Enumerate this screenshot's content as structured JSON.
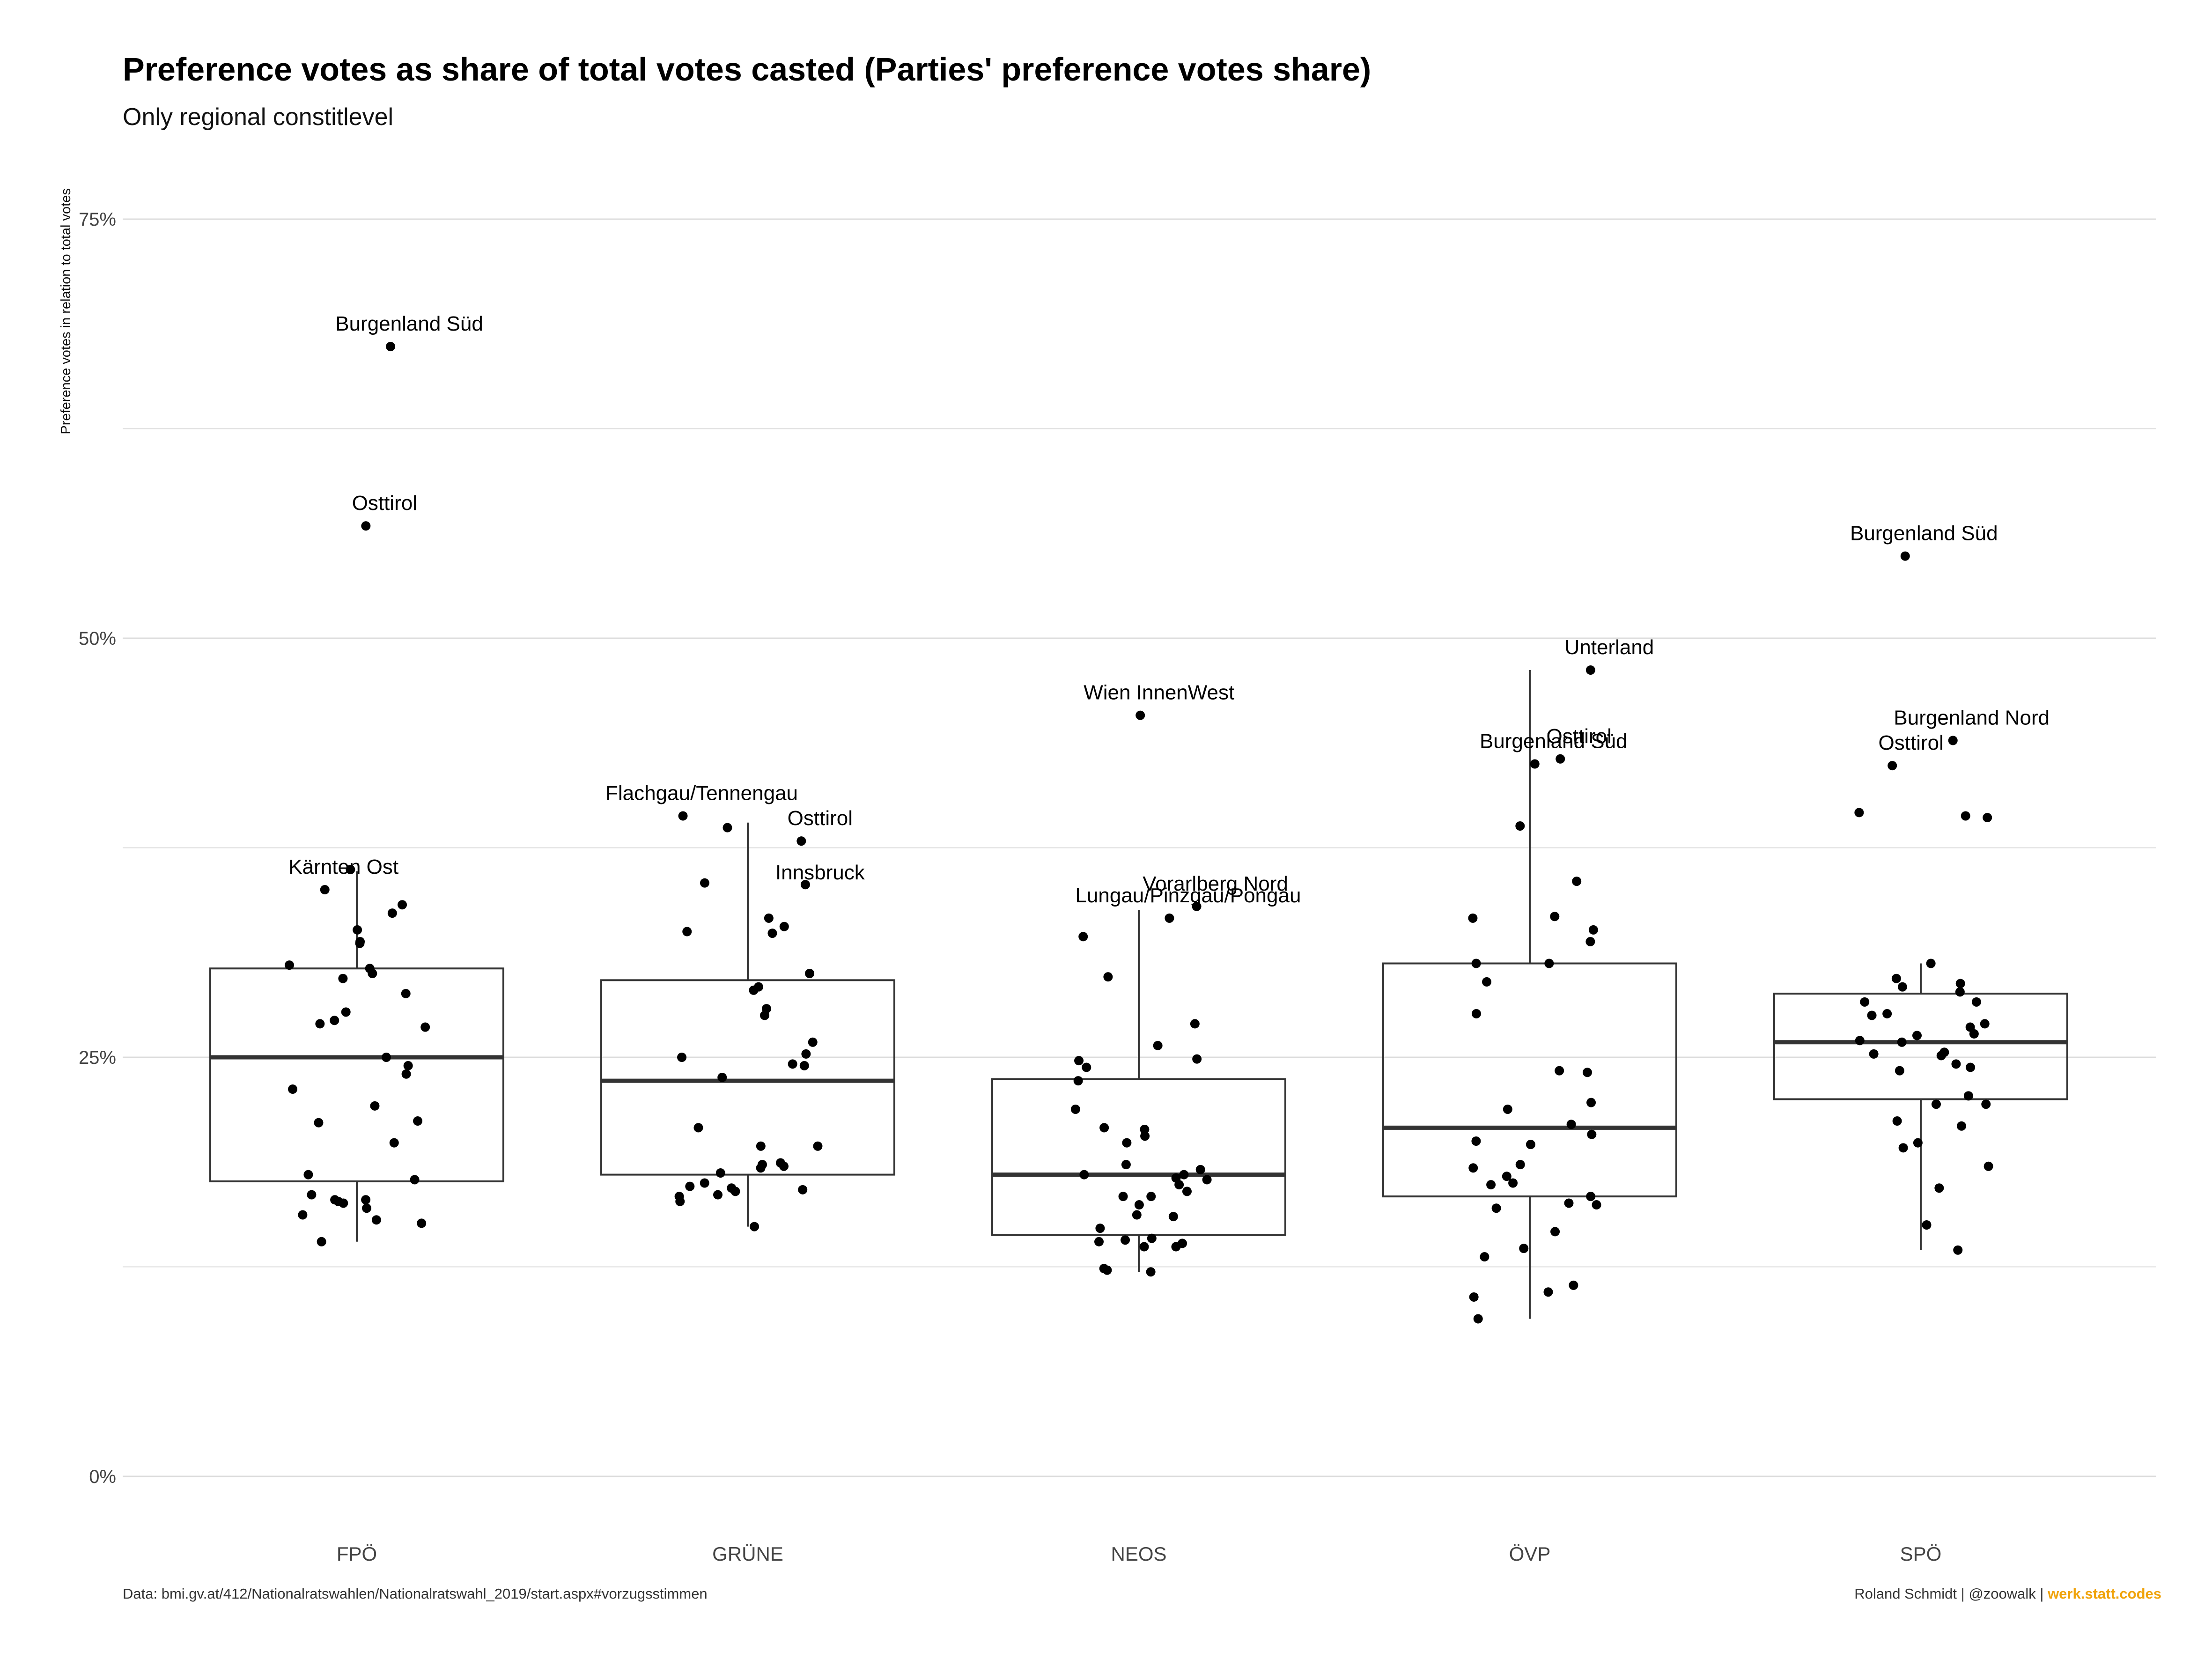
{
  "title": "Preference votes as share of total votes casted (Parties' preference votes share)",
  "subtitle": "Only regional constitlevel",
  "caption": {
    "source": "Data: bmi.gv.at/412/Nationalratswahlen/Nationalratswahl_2019/start.aspx#vorzugsstimmen",
    "author": "Roland Schmidt | @zoowalk | ",
    "brand": "werk.statt.codes"
  },
  "colors": {
    "box": "#333333",
    "median": "#333333",
    "point": "#000000",
    "grid": "#dcdcdc",
    "brand": "#f0a30a"
  },
  "chart_data": {
    "type": "box",
    "title": "Preference votes as share of total votes casted (Parties' preference votes share)",
    "subtitle": "Only regional constitlevel",
    "xlabel": "",
    "ylabel": "Preference votes in relation to total votes",
    "ylim": [
      -0.025,
      0.78
    ],
    "yticks": [
      0,
      0.25,
      0.5,
      0.75
    ],
    "ytick_labels": [
      "0%",
      "25%",
      "50%",
      "75%"
    ],
    "grid": true,
    "categories": [
      "FPÖ",
      "GRÜNE",
      "NEOS",
      "ÖVP",
      "SPÖ"
    ],
    "boxes": [
      {
        "category": "FPÖ",
        "min": 0.14,
        "q1": 0.176,
        "median": 0.25,
        "q3": 0.303,
        "max": 0.361
      },
      {
        "category": "GRÜNE",
        "min": 0.149,
        "q1": 0.18,
        "median": 0.236,
        "q3": 0.296,
        "max": 0.39
      },
      {
        "category": "NEOS",
        "min": 0.122,
        "q1": 0.144,
        "median": 0.18,
        "q3": 0.237,
        "max": 0.338
      },
      {
        "category": "ÖVP",
        "min": 0.094,
        "q1": 0.167,
        "median": 0.208,
        "q3": 0.306,
        "max": 0.481
      },
      {
        "category": "SPÖ",
        "min": 0.135,
        "q1": 0.225,
        "median": 0.259,
        "q3": 0.288,
        "max": 0.306
      }
    ],
    "points": [
      {
        "category": "FPÖ",
        "values": [
          0.674,
          0.567,
          0.362,
          0.35,
          0.341,
          0.336,
          0.326,
          0.319,
          0.318,
          0.305,
          0.303,
          0.3,
          0.297,
          0.288,
          0.272,
          0.277,
          0.27,
          0.268,
          0.25,
          0.245,
          0.24,
          0.231,
          0.221,
          0.212,
          0.211,
          0.199,
          0.18,
          0.177,
          0.168,
          0.165,
          0.165,
          0.164,
          0.163,
          0.16,
          0.156,
          0.153,
          0.151,
          0.14
        ]
      },
      {
        "category": "GRÜNE",
        "values": [
          0.394,
          0.387,
          0.379,
          0.354,
          0.353,
          0.333,
          0.328,
          0.325,
          0.324,
          0.3,
          0.292,
          0.29,
          0.279,
          0.275,
          0.259,
          0.252,
          0.25,
          0.246,
          0.245,
          0.238,
          0.208,
          0.197,
          0.197,
          0.187,
          0.186,
          0.185,
          0.184,
          0.181,
          0.175,
          0.173,
          0.172,
          0.171,
          0.17,
          0.168,
          0.167,
          0.164,
          0.149
        ]
      },
      {
        "category": "NEOS",
        "values": [
          0.454,
          0.34,
          0.333,
          0.322,
          0.298,
          0.27,
          0.257,
          0.249,
          0.248,
          0.244,
          0.236,
          0.219,
          0.208,
          0.207,
          0.203,
          0.199,
          0.186,
          0.183,
          0.18,
          0.18,
          0.178,
          0.177,
          0.174,
          0.17,
          0.167,
          0.167,
          0.162,
          0.156,
          0.155,
          0.148,
          0.142,
          0.141,
          0.14,
          0.139,
          0.137,
          0.137,
          0.124,
          0.123,
          0.122
        ]
      },
      {
        "category": "ÖVP",
        "values": [
          0.481,
          0.428,
          0.425,
          0.388,
          0.355,
          0.334,
          0.333,
          0.326,
          0.319,
          0.306,
          0.306,
          0.295,
          0.276,
          0.242,
          0.241,
          0.223,
          0.219,
          0.21,
          0.204,
          0.2,
          0.198,
          0.186,
          0.184,
          0.179,
          0.175,
          0.174,
          0.167,
          0.163,
          0.162,
          0.16,
          0.146,
          0.136,
          0.131,
          0.114,
          0.11,
          0.107,
          0.094
        ]
      },
      {
        "category": "SPÖ",
        "values": [
          0.549,
          0.439,
          0.424,
          0.396,
          0.394,
          0.393,
          0.306,
          0.297,
          0.294,
          0.292,
          0.289,
          0.283,
          0.283,
          0.276,
          0.275,
          0.27,
          0.268,
          0.264,
          0.263,
          0.26,
          0.259,
          0.253,
          0.252,
          0.251,
          0.246,
          0.244,
          0.242,
          0.227,
          0.222,
          0.222,
          0.212,
          0.209,
          0.199,
          0.196,
          0.185,
          0.172,
          0.15,
          0.135
        ]
      }
    ],
    "annotations": [
      {
        "category": "FPÖ",
        "value": 0.674,
        "text": "Burgenland Süd"
      },
      {
        "category": "FPÖ",
        "value": 0.567,
        "text": "Osttirol"
      },
      {
        "category": "FPÖ",
        "value": 0.35,
        "text": "Kärnten Ost"
      },
      {
        "category": "GRÜNE",
        "value": 0.394,
        "text": "Flachgau/Tennengau"
      },
      {
        "category": "GRÜNE",
        "value": 0.379,
        "text": "Osttirol"
      },
      {
        "category": "GRÜNE",
        "value": 0.379,
        "text": "Innsbruck"
      },
      {
        "category": "NEOS",
        "value": 0.454,
        "text": "Wien InnenWest"
      },
      {
        "category": "NEOS",
        "value": 0.34,
        "text": "Vorarlberg Nord"
      },
      {
        "category": "NEOS",
        "value": 0.333,
        "text": "Lungau/Pinzgau/Pongau"
      },
      {
        "category": "ÖVP",
        "value": 0.481,
        "text": "Unterland"
      },
      {
        "category": "ÖVP",
        "value": 0.428,
        "text": "Osttirol"
      },
      {
        "category": "ÖVP",
        "value": 0.425,
        "text": "Burgenland Süd"
      },
      {
        "category": "SPÖ",
        "value": 0.549,
        "text": "Burgenland Süd"
      },
      {
        "category": "SPÖ",
        "value": 0.439,
        "text": "Burgenland Nord"
      },
      {
        "category": "SPÖ",
        "value": 0.424,
        "text": "Osttirol"
      }
    ]
  }
}
